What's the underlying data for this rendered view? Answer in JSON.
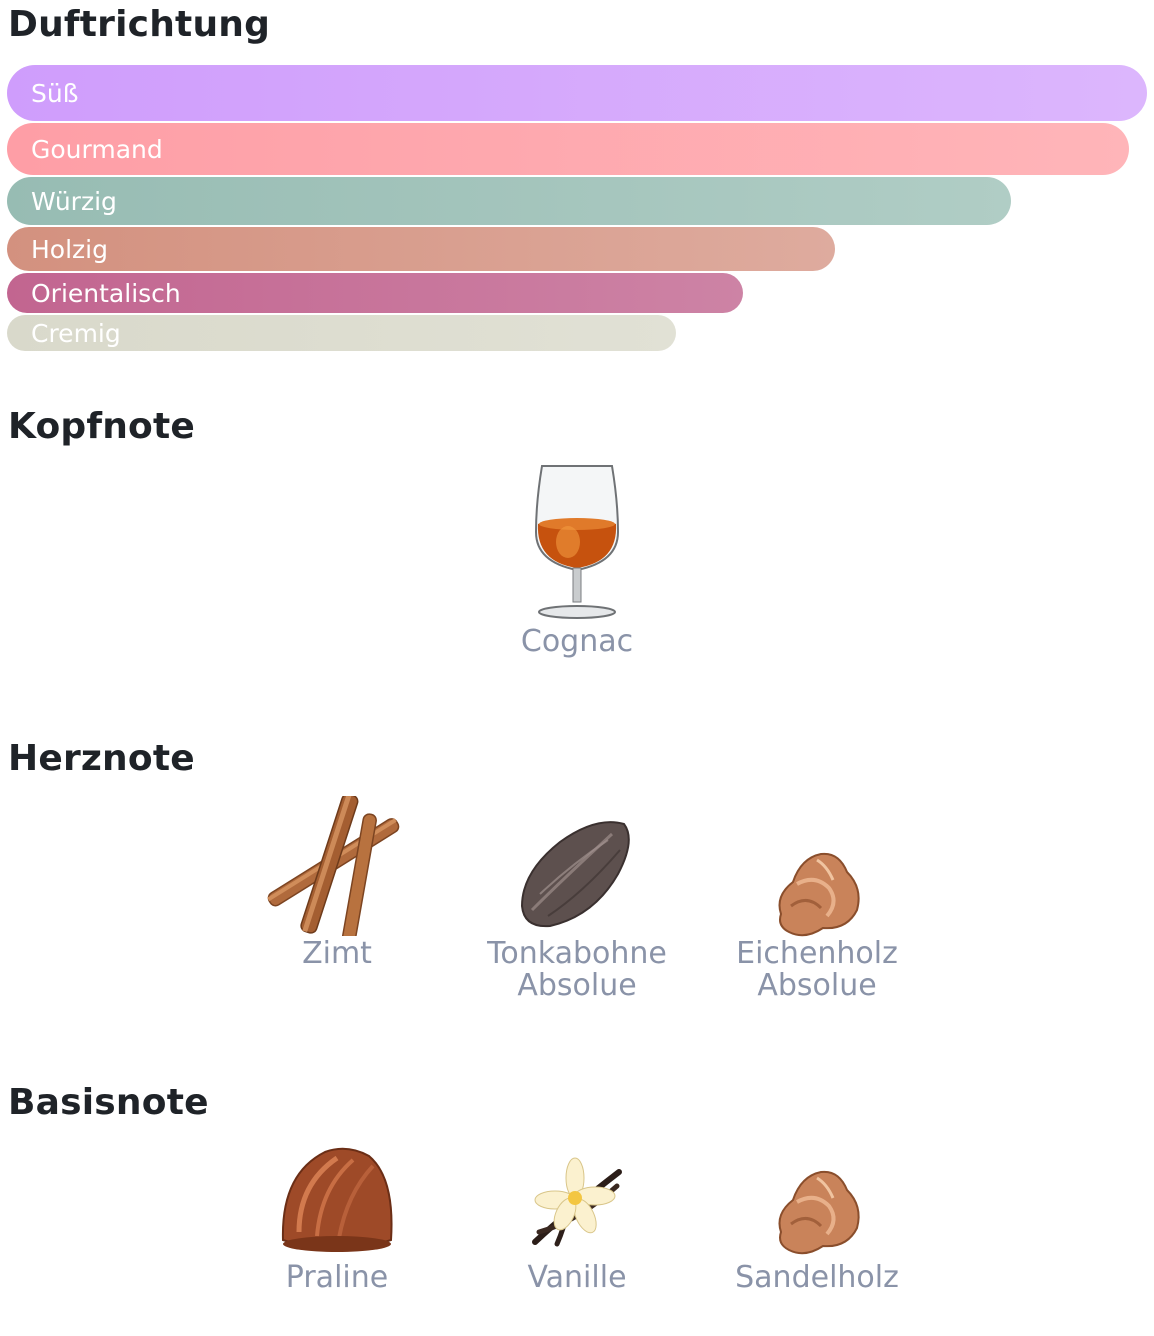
{
  "sections": {
    "accords_title": "Duftrichtung",
    "top_title": "Kopfnote",
    "heart_title": "Herznote",
    "base_title": "Basisnote"
  },
  "accords": [
    {
      "label": "Süß",
      "value": 100,
      "color_start": "#cf9dfc",
      "color_end": "#dcb6fd"
    },
    {
      "label": "Gourmand",
      "value": 98.4,
      "color_start": "#fe9ea6",
      "color_end": "#ffb5b9"
    },
    {
      "label": "Würzig",
      "value": 88.1,
      "color_start": "#97bcb3",
      "color_end": "#b0cdc5"
    },
    {
      "label": "Holzig",
      "value": 72.6,
      "color_start": "#d3917f",
      "color_end": "#deab9e"
    },
    {
      "label": "Orientalisch",
      "value": 64.6,
      "color_start": "#c26590",
      "color_end": "#cd83a5"
    },
    {
      "label": "Cremig",
      "value": 58.7,
      "color_start": "#d9d9cb",
      "color_end": "#e1e1d5"
    }
  ],
  "top_notes": [
    {
      "label": "Cognac",
      "icon": "cognac-glass-icon"
    }
  ],
  "heart_notes": [
    {
      "label": "Zimt",
      "icon": "cinnamon-icon"
    },
    {
      "label": "Tonkabohne Absolue",
      "icon": "tonka-bean-icon"
    },
    {
      "label": "Eichenholz Absolue",
      "icon": "wood-chip-icon"
    }
  ],
  "base_notes": [
    {
      "label": "Praline",
      "icon": "praline-icon"
    },
    {
      "label": "Vanille",
      "icon": "vanilla-icon"
    },
    {
      "label": "Sandelholz",
      "icon": "sandalwood-icon"
    }
  ]
}
